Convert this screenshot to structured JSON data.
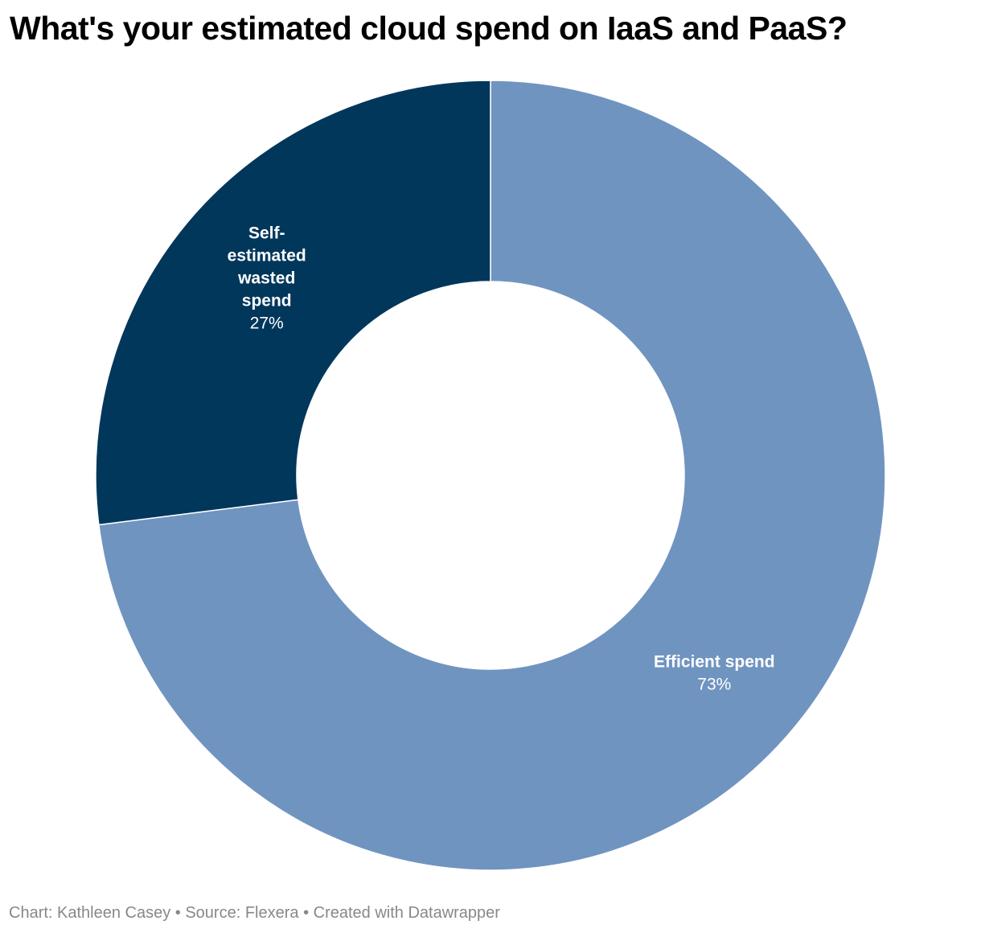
{
  "chart_data": {
    "type": "pie",
    "variant": "donut",
    "title": "What's your estimated cloud spend on IaaS and PaaS?",
    "slices": [
      {
        "label_lines": [
          "Efficient spend"
        ],
        "value": 73,
        "display": "73%",
        "color": "#7094c0"
      },
      {
        "label_lines": [
          "Self-",
          "estimated",
          "wasted",
          "spend"
        ],
        "value": 27,
        "display": "27%",
        "color": "#02375c"
      }
    ],
    "start": "12 o'clock",
    "direction": "clockwise",
    "legend": "none",
    "credit": "Chart: Kathleen Casey • Source: Flexera • Created with Datawrapper"
  }
}
